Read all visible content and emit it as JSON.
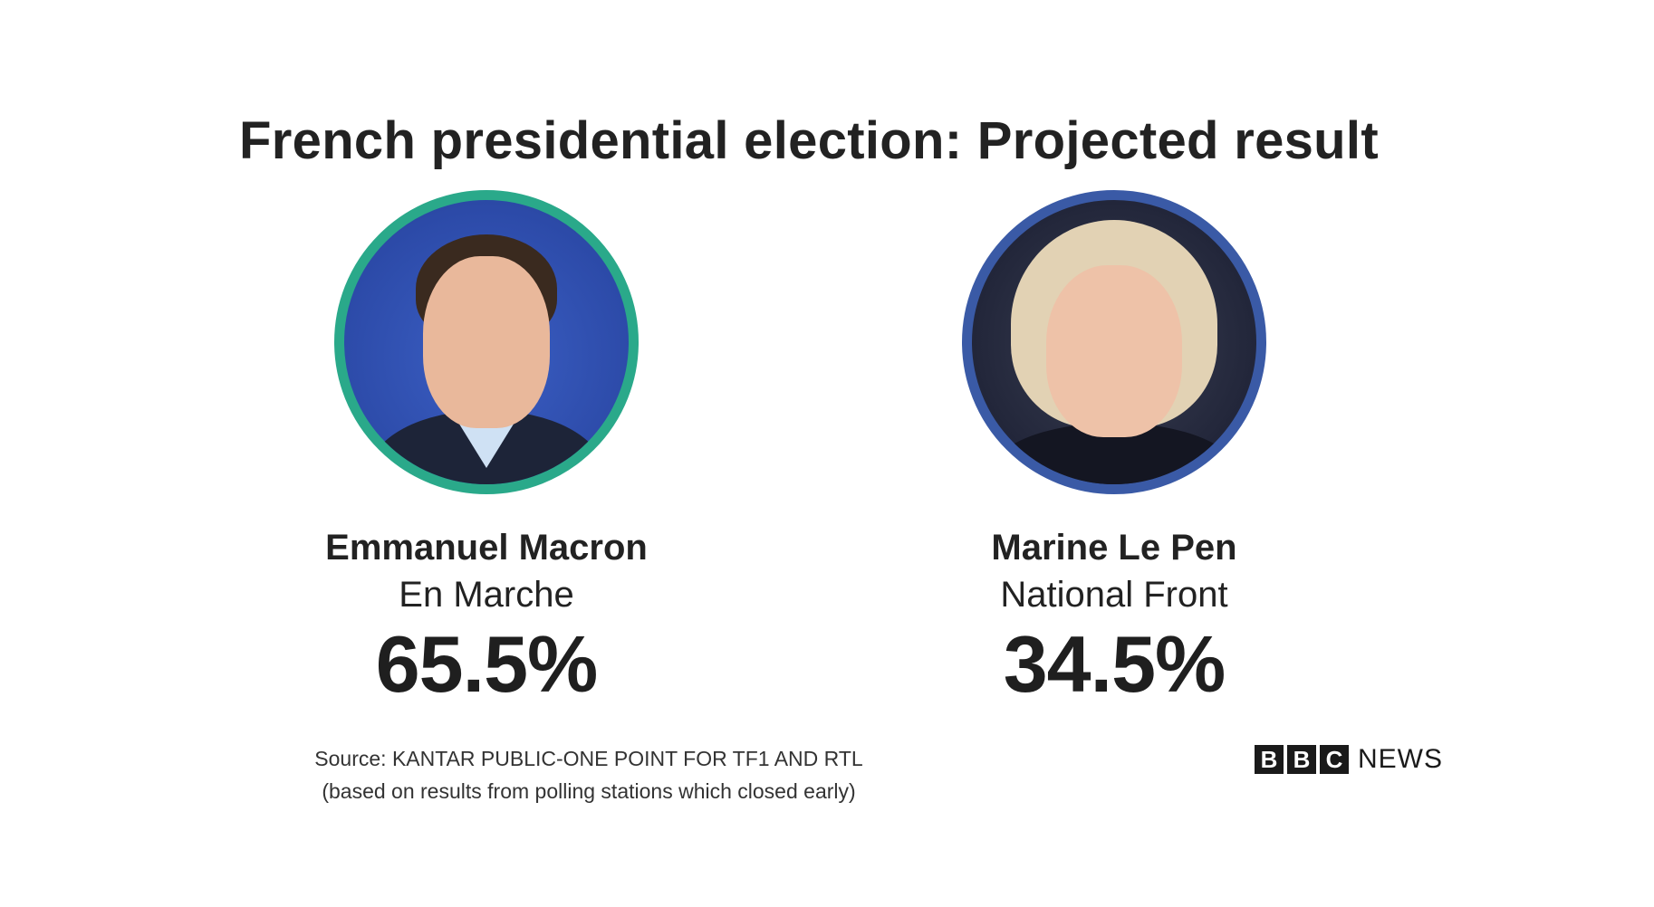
{
  "title": "French presidential election: Projected result",
  "colors": {
    "macron_ring": "#2aa98a",
    "lepen_ring": "#3a5aa6"
  },
  "candidates": [
    {
      "name": "Emmanuel Macron",
      "party": "En Marche",
      "percent": "65.5%"
    },
    {
      "name": "Marine Le Pen",
      "party": "National Front",
      "percent": "34.5%"
    }
  ],
  "source": {
    "line1": "Source: KANTAR PUBLIC-ONE POINT FOR TF1 AND RTL",
    "line2": "(based on results from polling stations which closed early)"
  },
  "brand": {
    "letters": [
      "B",
      "B",
      "C"
    ],
    "suffix": "NEWS"
  }
}
